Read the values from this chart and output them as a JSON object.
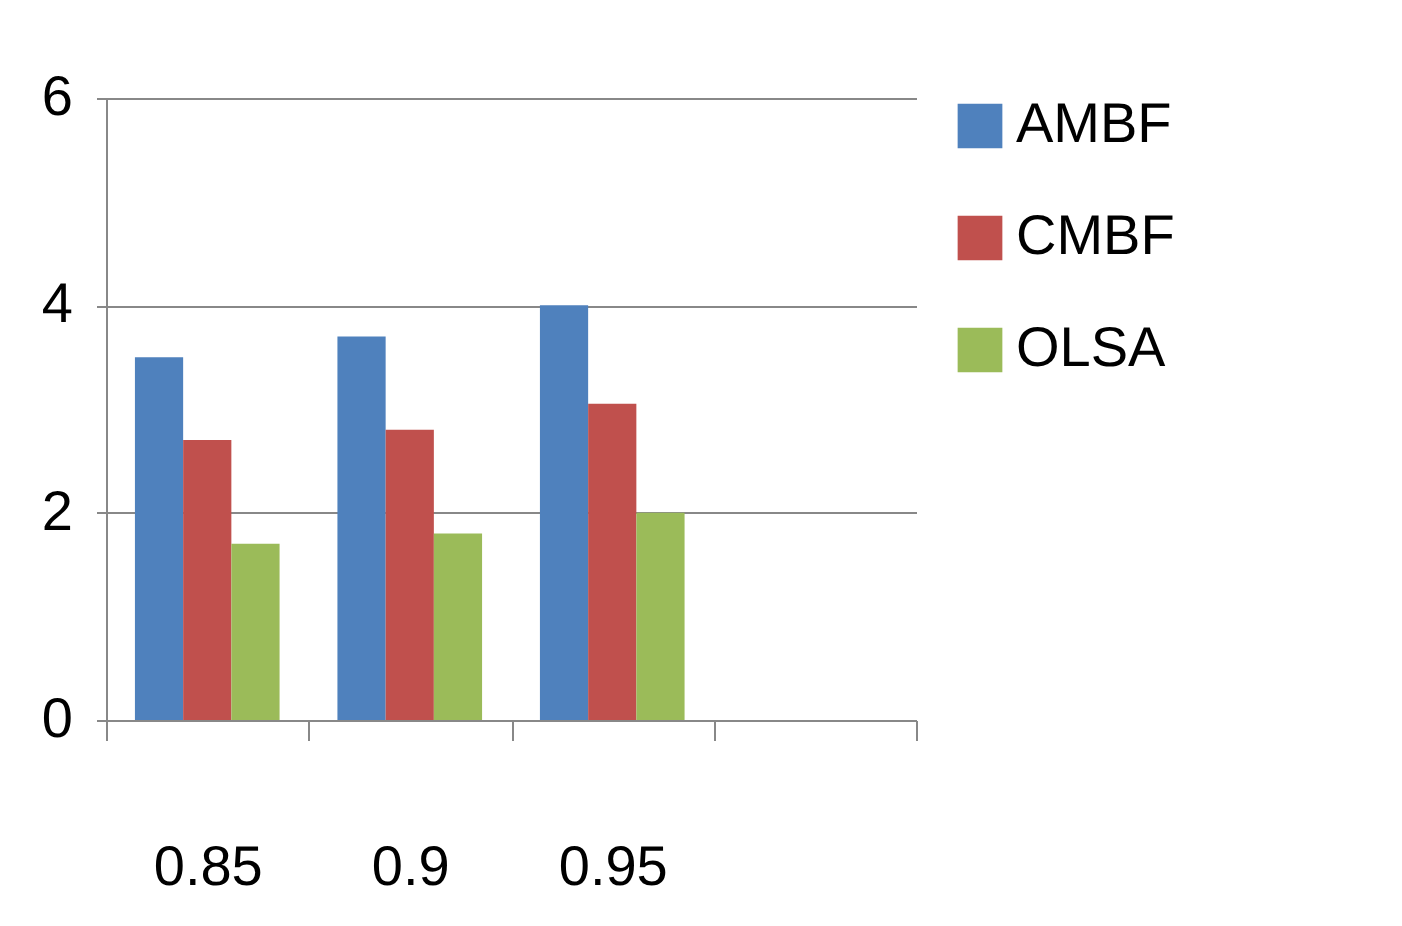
{
  "chart_data": {
    "type": "bar",
    "categories": [
      "0.85",
      "0.9",
      "0.95",
      null
    ],
    "series": [
      {
        "name": "AMBF",
        "color": "#4f81bd",
        "values": [
          3.5,
          3.7,
          4.0,
          null
        ]
      },
      {
        "name": "CMBF",
        "color": "#c0504d",
        "values": [
          2.7,
          2.8,
          3.05,
          null
        ]
      },
      {
        "name": "OLSA",
        "color": "#9bbb59",
        "values": [
          1.7,
          1.8,
          2.0,
          null
        ]
      }
    ],
    "ylim": [
      0,
      6
    ],
    "yticks": [
      0,
      2,
      4,
      6
    ],
    "grid": "y",
    "legend": "right"
  }
}
